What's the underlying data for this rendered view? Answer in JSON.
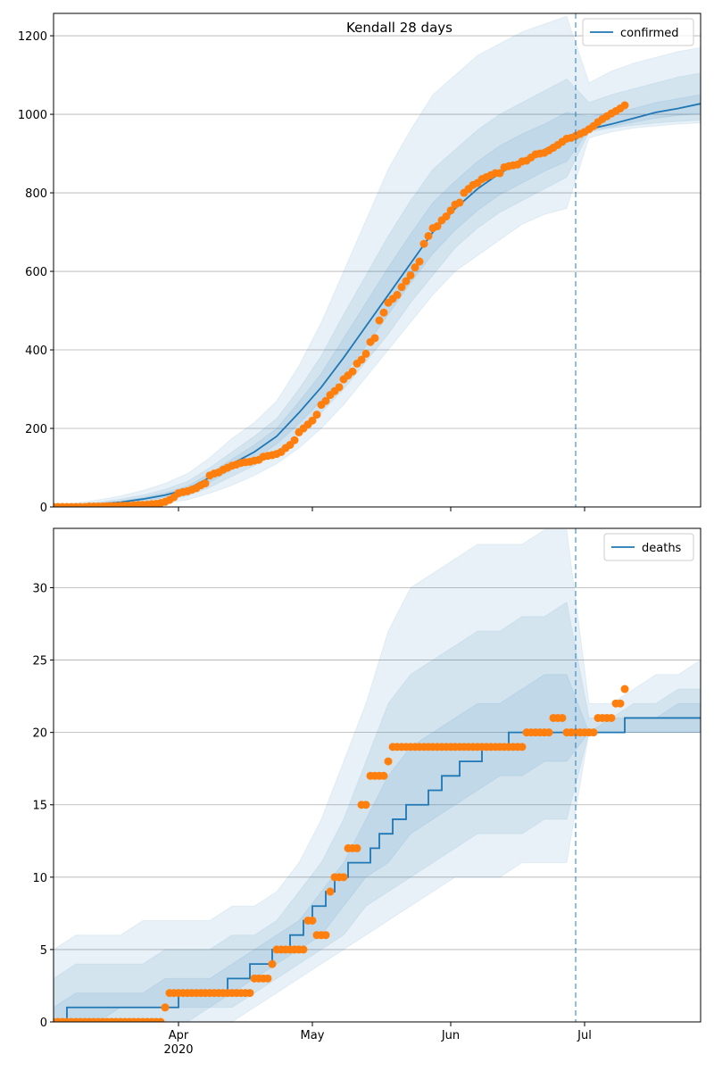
{
  "chart_data": [
    {
      "type": "line",
      "title": "Kendall 28 days",
      "xlim": [
        0,
        145
      ],
      "xticks": [
        28,
        58,
        89,
        119
      ],
      "ylim": [
        0,
        1257
      ],
      "yticks": [
        0,
        200,
        400,
        600,
        800,
        1000,
        1200
      ],
      "grid": true,
      "legend": "upper right",
      "forecast_start": 117,
      "band_x": [
        0,
        5,
        10,
        15,
        20,
        25,
        30,
        35,
        40,
        45,
        50,
        55,
        60,
        65,
        70,
        75,
        80,
        85,
        90,
        95,
        100,
        105,
        110,
        115,
        120,
        125,
        130,
        135,
        140,
        145
      ],
      "bands": [
        {
          "color": "#1f77b4",
          "upper": [
            5,
            10,
            18,
            28,
            42,
            60,
            85,
            125,
            175,
            215,
            270,
            360,
            470,
            600,
            730,
            860,
            960,
            1050,
            1100,
            1150,
            1180,
            1210,
            1230,
            1250,
            1080,
            1110,
            1130,
            1145,
            1160,
            1170
          ],
          "lower": [
            0,
            0,
            1,
            3,
            6,
            10,
            18,
            35,
            55,
            80,
            110,
            150,
            200,
            260,
            330,
            400,
            470,
            540,
            600,
            640,
            680,
            720,
            745,
            760,
            940,
            955,
            965,
            970,
            975,
            978
          ]
        },
        {
          "color": "#1f77b4",
          "upper": [
            3,
            7,
            12,
            20,
            30,
            45,
            65,
            100,
            140,
            180,
            225,
            300,
            385,
            490,
            590,
            690,
            780,
            860,
            910,
            960,
            1000,
            1030,
            1060,
            1090,
            1030,
            1050,
            1065,
            1080,
            1095,
            1105
          ],
          "lower": [
            1,
            2,
            4,
            6,
            11,
            17,
            28,
            50,
            78,
            105,
            140,
            190,
            240,
            300,
            370,
            440,
            520,
            590,
            660,
            710,
            750,
            780,
            810,
            840,
            955,
            965,
            972,
            978,
            982,
            985
          ]
        },
        {
          "color": "#1f77b4",
          "upper": [
            2,
            5,
            9,
            15,
            24,
            36,
            53,
            85,
            122,
            158,
            200,
            268,
            340,
            430,
            520,
            610,
            695,
            775,
            830,
            880,
            920,
            950,
            975,
            1005,
            995,
            1005,
            1015,
            1030,
            1040,
            1050
          ],
          "lower": [
            1,
            3,
            5,
            9,
            15,
            24,
            37,
            63,
            95,
            122,
            160,
            212,
            270,
            335,
            410,
            490,
            570,
            645,
            705,
            755,
            795,
            825,
            855,
            880,
            960,
            968,
            980,
            990,
            997,
            1002
          ]
        }
      ],
      "series": [
        {
          "name": "confirmed",
          "color": "#1f77b4",
          "x": [
            0,
            5,
            10,
            15,
            20,
            25,
            30,
            35,
            40,
            45,
            50,
            55,
            60,
            65,
            70,
            75,
            80,
            85,
            90,
            95,
            100,
            105,
            110,
            115,
            120,
            125,
            130,
            135,
            140,
            145
          ],
          "values": [
            2,
            4,
            7,
            12,
            20,
            30,
            45,
            75,
            110,
            140,
            180,
            240,
            305,
            380,
            460,
            540,
            620,
            700,
            760,
            810,
            850,
            880,
            910,
            940,
            962,
            975,
            990,
            1005,
            1015,
            1027
          ]
        },
        {
          "color": "#ff7f0e",
          "marker": "o",
          "x": [
            0,
            1,
            2,
            3,
            4,
            5,
            6,
            7,
            8,
            9,
            10,
            11,
            12,
            13,
            14,
            15,
            16,
            17,
            18,
            19,
            20,
            21,
            22,
            23,
            24,
            25,
            26,
            27,
            28,
            29,
            30,
            31,
            32,
            33,
            34,
            35,
            36,
            37,
            38,
            39,
            40,
            41,
            42,
            43,
            44,
            45,
            46,
            47,
            48,
            49,
            50,
            51,
            52,
            53,
            54,
            55,
            56,
            57,
            58,
            59,
            60,
            61,
            62,
            63,
            64,
            65,
            66,
            67,
            68,
            69,
            70,
            71,
            72,
            73,
            74,
            75,
            76,
            77,
            78,
            79,
            80,
            81,
            82,
            83,
            84,
            85,
            86,
            87,
            88,
            89,
            90,
            91,
            92,
            93,
            94,
            95,
            96,
            97,
            98,
            99,
            100,
            101,
            102,
            103,
            104,
            105,
            106,
            107,
            108,
            109,
            110,
            111,
            112,
            113,
            114,
            115,
            116,
            117,
            118,
            119,
            120,
            121,
            122,
            123,
            124,
            125,
            126,
            127,
            128
          ],
          "values": [
            0,
            0,
            0,
            0,
            0,
            0,
            0,
            0,
            1,
            1,
            1,
            1,
            2,
            2,
            2,
            3,
            3,
            3,
            4,
            5,
            5,
            6,
            7,
            8,
            10,
            13,
            18,
            25,
            35,
            38,
            40,
            44,
            48,
            55,
            60,
            80,
            85,
            88,
            95,
            100,
            105,
            108,
            112,
            114,
            115,
            118,
            120,
            128,
            130,
            132,
            135,
            140,
            150,
            158,
            170,
            190,
            200,
            210,
            220,
            235,
            260,
            270,
            285,
            295,
            305,
            325,
            335,
            345,
            365,
            375,
            390,
            420,
            430,
            475,
            495,
            520,
            530,
            540,
            560,
            575,
            590,
            610,
            625,
            670,
            690,
            710,
            715,
            730,
            740,
            755,
            770,
            775,
            800,
            810,
            820,
            825,
            835,
            840,
            845,
            850,
            850,
            865,
            868,
            870,
            872,
            880,
            882,
            890,
            898,
            900,
            902,
            908,
            915,
            922,
            930,
            938,
            940,
            945,
            950,
            955,
            962,
            970,
            980,
            988,
            995,
            1002,
            1008,
            1015,
            1023
          ]
        }
      ]
    },
    {
      "type": "line",
      "xlim": [
        0,
        145
      ],
      "xticks": [
        {
          "value": 28,
          "label": "Apr\n2020"
        },
        {
          "value": 58,
          "label": "May"
        },
        {
          "value": 89,
          "label": "Jun"
        },
        {
          "value": 119,
          "label": "Jul"
        }
      ],
      "ylim": [
        0,
        34.1
      ],
      "yticks": [
        0,
        5,
        10,
        15,
        20,
        25,
        30
      ],
      "grid": true,
      "legend": "upper right",
      "forecast_start": 117,
      "band_x": [
        0,
        5,
        10,
        15,
        20,
        25,
        30,
        35,
        40,
        45,
        50,
        55,
        60,
        65,
        70,
        75,
        80,
        85,
        90,
        95,
        100,
        105,
        110,
        115,
        120,
        125,
        130,
        135,
        140,
        145
      ],
      "bands": [
        {
          "color": "#1f77b4",
          "upper": [
            5,
            6,
            6,
            6,
            7,
            7,
            7,
            7,
            8,
            8,
            9,
            11,
            14,
            18,
            22,
            27,
            30,
            31,
            32,
            33,
            33,
            33,
            34,
            34,
            22,
            22,
            23,
            24,
            24,
            25
          ],
          "lower": [
            0,
            0,
            0,
            0,
            0,
            0,
            0,
            0,
            0,
            1,
            2,
            3,
            4,
            5,
            6,
            7,
            8,
            9,
            10,
            10,
            10,
            11,
            11,
            11,
            20,
            20,
            20,
            20,
            20,
            20
          ]
        },
        {
          "color": "#1f77b4",
          "upper": [
            3,
            4,
            4,
            4,
            4,
            5,
            5,
            5,
            6,
            6,
            7,
            9,
            11,
            14,
            18,
            22,
            24,
            25,
            26,
            27,
            27,
            28,
            28,
            29,
            21,
            21,
            22,
            22,
            23,
            23
          ],
          "lower": [
            0,
            0,
            0,
            0,
            0,
            0,
            0,
            1,
            1,
            2,
            3,
            4,
            5,
            6,
            8,
            9,
            10,
            11,
            12,
            13,
            13,
            13,
            14,
            14,
            20,
            20,
            20,
            20,
            20,
            20
          ]
        },
        {
          "color": "#1f77b4",
          "upper": [
            1,
            2,
            2,
            2,
            2,
            3,
            3,
            3,
            4,
            5,
            6,
            7,
            9,
            11,
            14,
            17,
            19,
            20,
            21,
            22,
            22,
            23,
            24,
            24,
            20,
            21,
            21,
            21,
            22,
            22
          ],
          "lower": [
            0,
            0,
            0,
            1,
            1,
            1,
            1,
            1,
            2,
            3,
            4,
            5,
            6,
            8,
            10,
            11,
            13,
            14,
            15,
            16,
            17,
            17,
            18,
            18,
            20,
            20,
            20,
            20,
            20,
            20
          ]
        }
      ],
      "series": [
        {
          "name": "deaths",
          "color": "#1f77b4",
          "step": "post",
          "x": [
            0,
            3,
            28,
            39,
            44,
            49,
            53,
            56,
            58,
            61,
            63,
            66,
            71,
            73,
            76,
            79,
            84,
            87,
            91,
            96,
            102,
            128,
            145
          ],
          "values": [
            0,
            1,
            2,
            3,
            4,
            5,
            6,
            7,
            8,
            9,
            10,
            11,
            12,
            13,
            14,
            15,
            16,
            17,
            18,
            19,
            20,
            21,
            21
          ]
        },
        {
          "color": "#ff7f0e",
          "marker": "o",
          "x": [
            0,
            1,
            2,
            3,
            4,
            5,
            6,
            7,
            8,
            9,
            10,
            11,
            12,
            13,
            14,
            15,
            16,
            17,
            18,
            19,
            20,
            21,
            22,
            23,
            24,
            25,
            26,
            27,
            28,
            29,
            30,
            31,
            32,
            33,
            34,
            35,
            36,
            37,
            38,
            39,
            40,
            41,
            42,
            43,
            44,
            45,
            46,
            47,
            48,
            49,
            50,
            51,
            52,
            53,
            54,
            55,
            56,
            57,
            58,
            59,
            60,
            61,
            62,
            63,
            64,
            65,
            66,
            67,
            68,
            69,
            70,
            71,
            72,
            73,
            74,
            75,
            76,
            77,
            78,
            79,
            80,
            81,
            82,
            83,
            84,
            85,
            86,
            87,
            88,
            89,
            90,
            91,
            92,
            93,
            94,
            95,
            96,
            97,
            98,
            99,
            100,
            101,
            102,
            103,
            104,
            105,
            106,
            107,
            108,
            109,
            110,
            111,
            112,
            113,
            114,
            115,
            116,
            117,
            118,
            119,
            120,
            121,
            122,
            123,
            124,
            125,
            126,
            127,
            128
          ],
          "values": [
            0,
            0,
            0,
            0,
            0,
            0,
            0,
            0,
            0,
            0,
            0,
            0,
            0,
            0,
            0,
            0,
            0,
            0,
            0,
            0,
            0,
            0,
            0,
            0,
            0,
            1,
            2,
            2,
            2,
            2,
            2,
            2,
            2,
            2,
            2,
            2,
            2,
            2,
            2,
            2,
            2,
            2,
            2,
            2,
            2,
            3,
            3,
            3,
            3,
            4,
            5,
            5,
            5,
            5,
            5,
            5,
            5,
            7,
            7,
            6,
            6,
            6,
            9,
            10,
            10,
            10,
            12,
            12,
            12,
            15,
            15,
            17,
            17,
            17,
            17,
            18,
            19,
            19,
            19,
            19,
            19,
            19,
            19,
            19,
            19,
            19,
            19,
            19,
            19,
            19,
            19,
            19,
            19,
            19,
            19,
            19,
            19,
            19,
            19,
            19,
            19,
            19,
            19,
            19,
            19,
            19,
            20,
            20,
            20,
            20,
            20,
            20,
            21,
            21,
            21,
            20,
            20,
            20,
            20,
            20,
            20,
            20,
            21,
            21,
            21,
            21,
            22,
            22,
            23
          ]
        }
      ]
    }
  ]
}
